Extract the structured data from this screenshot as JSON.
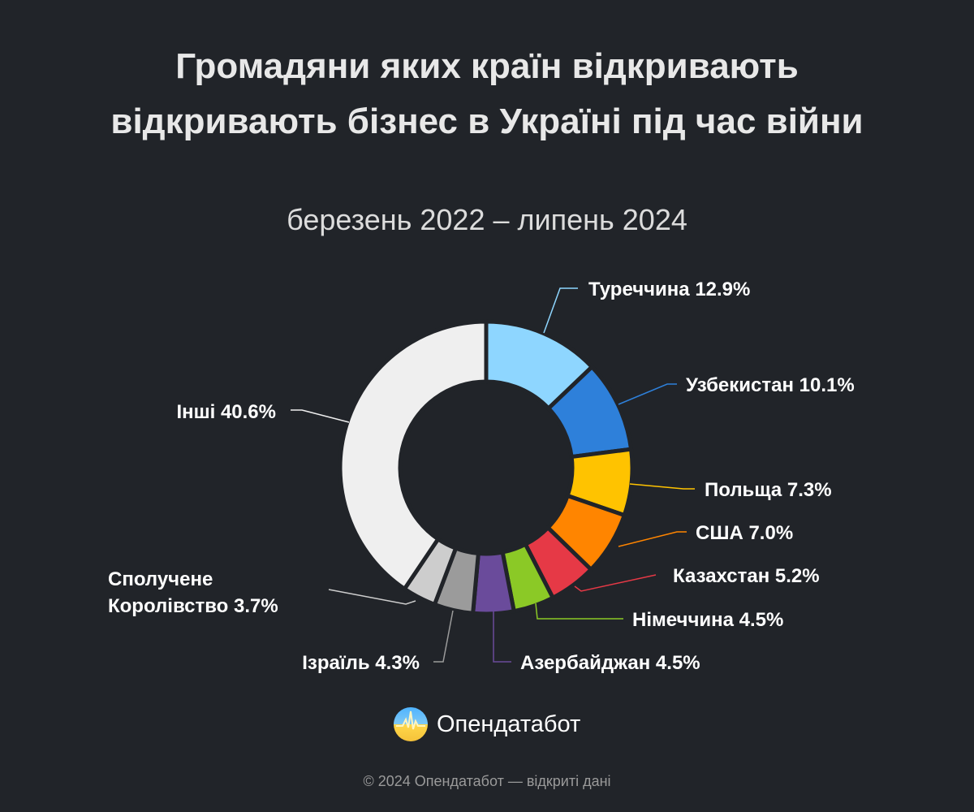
{
  "chart_data": {
    "type": "pie",
    "variant": "donut",
    "title": "Громадяни яких країн відкривають відкривають бізнес в Україні під час війни",
    "subtitle": "березень 2022 – липень 2024",
    "unit": "%",
    "slices": [
      {
        "label": "Туреччина",
        "value": 12.9,
        "color": "#8ED6FF"
      },
      {
        "label": "Узбекистан",
        "value": 10.1,
        "color": "#2E80DA"
      },
      {
        "label": "Польща",
        "value": 7.3,
        "color": "#FFC300"
      },
      {
        "label": "США",
        "value": 7.0,
        "color": "#FF8500"
      },
      {
        "label": "Казахстан",
        "value": 5.2,
        "color": "#E63946"
      },
      {
        "label": "Німеччина",
        "value": 4.5,
        "color": "#8BC926"
      },
      {
        "label": "Азербайджан",
        "value": 4.5,
        "color": "#6A4B9B"
      },
      {
        "label": "Ізраїль",
        "value": 4.3,
        "color": "#9B9B9B"
      },
      {
        "label": "Сполучене Королівство",
        "value": 3.7,
        "color": "#CDCDCD"
      },
      {
        "label": "Інші",
        "value": 40.6,
        "color": "#EFEFEF"
      }
    ]
  },
  "brand": {
    "name": "Опендатабот"
  },
  "footer": "© 2024 Опендатабот — відкриті дані"
}
